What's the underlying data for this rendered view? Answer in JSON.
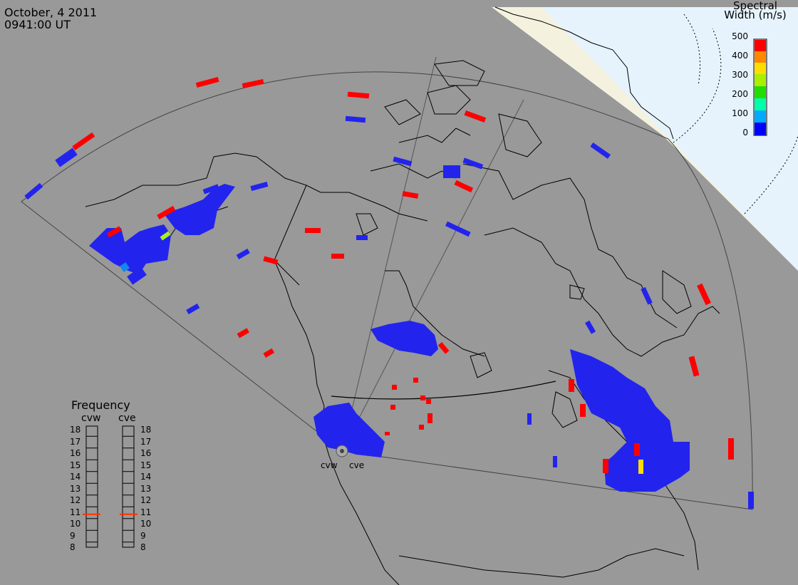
{
  "header": {
    "date": "October, 4 2011",
    "time": "0941:00 UT"
  },
  "spectral_width_legend": {
    "title_line1": "Spectral",
    "title_line2": "Width (m/s)",
    "ticks": [
      "500",
      "400",
      "300",
      "200",
      "100",
      "0"
    ],
    "colors": [
      "#0000ff",
      "#00aaff",
      "#00ffaa",
      "#22dd00",
      "#aaee00",
      "#ffdd00",
      "#ff8800",
      "#ff0000"
    ]
  },
  "frequency_legend": {
    "title": "Frequency",
    "columns": [
      "cvw",
      "cve"
    ],
    "scale": [
      "18",
      "17",
      "16",
      "15",
      "14",
      "13",
      "12",
      "11",
      "10",
      "9",
      "8"
    ],
    "current_mhz": 10.8,
    "marker_color": "#ff3300"
  },
  "radar_sites": [
    "cvw",
    "cve"
  ],
  "colors": {
    "ocean": "#999999",
    "land_outline": "#000000",
    "daylight": "#f6f6e4",
    "polar": "#e8f4fc",
    "echo_low": "#2222ee",
    "echo_high": "#ff0000"
  }
}
